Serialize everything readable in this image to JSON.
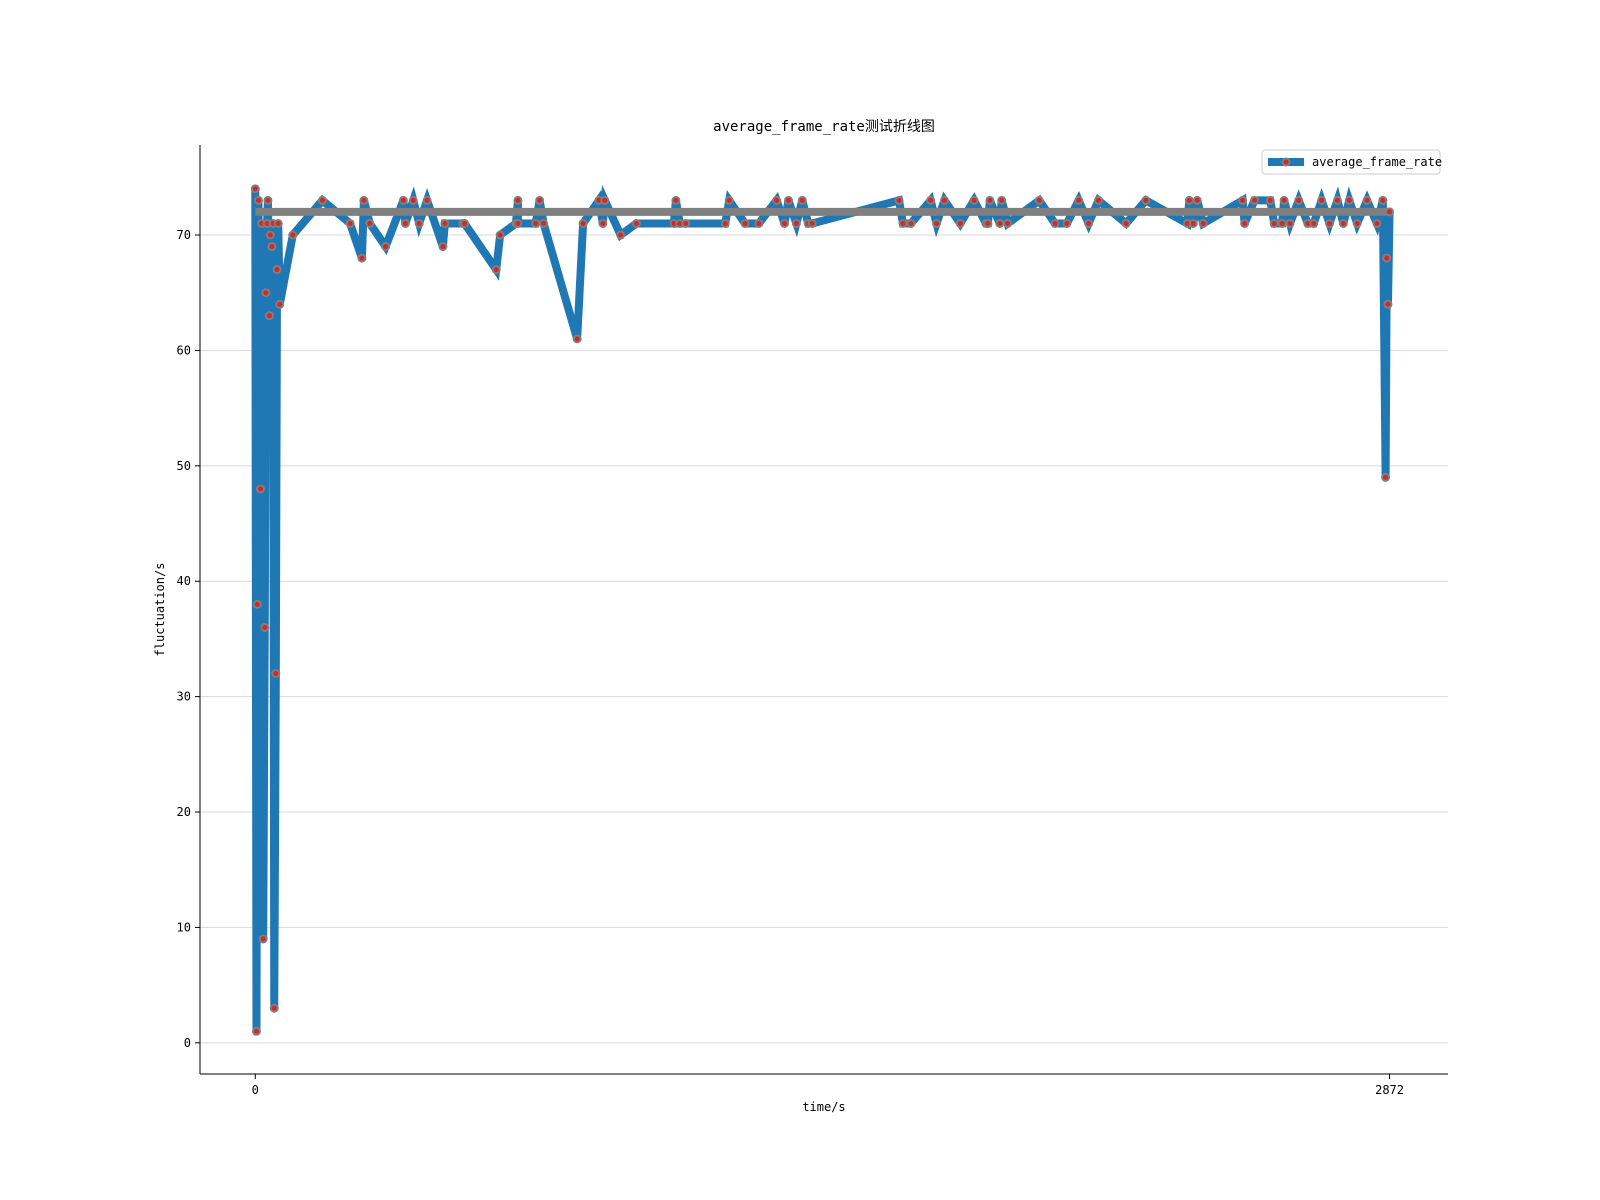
{
  "chart_data": {
    "type": "line",
    "title": "average_frame_rate测试折线图",
    "xlabel": "time/s",
    "ylabel": "fluctuation/s",
    "x_ticks": [
      "0",
      "2872"
    ],
    "y_ticks": [
      "0",
      "10",
      "20",
      "30",
      "40",
      "50",
      "60",
      "70"
    ],
    "xlim": [
      -140,
      3020
    ],
    "ylim": [
      -2.7,
      77.8
    ],
    "grid": "horizontal",
    "legend": {
      "position": "top-right"
    },
    "series": [
      {
        "name": "average_frame_rate",
        "line_color": "#1f77b4",
        "marker_face": "#d62728",
        "marker_edge": "#7f7f7f",
        "x": [
          0,
          3,
          5,
          8,
          13,
          16,
          20,
          24,
          27,
          30,
          32,
          36,
          38,
          42,
          45,
          48,
          52,
          55,
          58,
          62,
          95,
          170,
          240,
          270,
          275,
          290,
          330,
          375,
          380,
          400,
          415,
          435,
          475,
          480,
          525,
          530,
          610,
          620,
          660,
          665,
          665,
          710,
          720,
          730,
          815,
          830,
          870,
          880,
          885,
          925,
          965,
          1060,
          1065,
          1075,
          1090,
          1190,
          1200,
          1240,
          1275,
          1320,
          1340,
          1350,
          1370,
          1385,
          1400,
          1410,
          1630,
          1640,
          1660,
          1710,
          1725,
          1745,
          1785,
          1820,
          1850,
          1855,
          1860,
          1885,
          1890,
          1905,
          1985,
          2025,
          2055,
          2085,
          2110,
          2135,
          2205,
          2255,
          2360,
          2365,
          2375,
          2385,
          2400,
          2500,
          2505,
          2530,
          2570,
          2580,
          2600,
          2605,
          2620,
          2642,
          2665,
          2680,
          2700,
          2720,
          2740,
          2755,
          2770,
          2790,
          2815,
          2840,
          2855,
          2862,
          2865,
          2868,
          2872
        ],
        "values": [
          74,
          1,
          38,
          73,
          48,
          71,
          9,
          36,
          65,
          71,
          73,
          63,
          70,
          69,
          71,
          3,
          32,
          67,
          71,
          64,
          70,
          73,
          71,
          68,
          73,
          71,
          69,
          73,
          71,
          73,
          71,
          73,
          69,
          71,
          71,
          71,
          67,
          70,
          71,
          73,
          71,
          71,
          73,
          71,
          61,
          71,
          73,
          71,
          73,
          70,
          71,
          71,
          73,
          71,
          71,
          71,
          73,
          71,
          71,
          73,
          71,
          73,
          71,
          73,
          71,
          71,
          73,
          71,
          71,
          73,
          71,
          73,
          71,
          73,
          71,
          71,
          73,
          71,
          73,
          71,
          73,
          71,
          71,
          73,
          71,
          73,
          71,
          73,
          71,
          73,
          71,
          73,
          71,
          73,
          71,
          73,
          73,
          71,
          71,
          73,
          71,
          73,
          71,
          71,
          73,
          71,
          73,
          71,
          73,
          71,
          73,
          71,
          73,
          49,
          68,
          64,
          72
        ]
      }
    ]
  }
}
